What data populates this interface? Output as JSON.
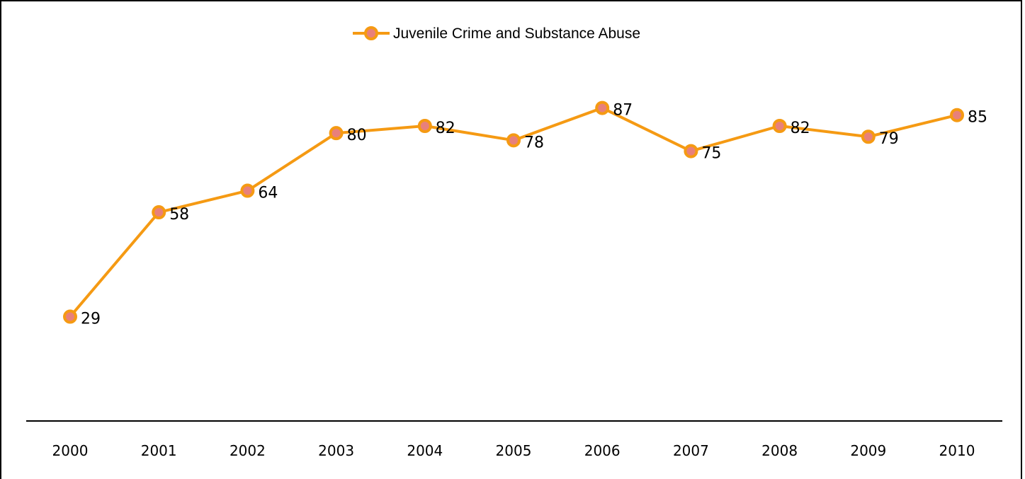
{
  "chart_data": {
    "type": "line",
    "categories": [
      "2000",
      "2001",
      "2002",
      "2003",
      "2004",
      "2005",
      "2006",
      "2007",
      "2008",
      "2009",
      "2010"
    ],
    "series": [
      {
        "name": "Juvenile Crime and Substance Abuse",
        "values": [
          29,
          58,
          64,
          80,
          82,
          78,
          87,
          75,
          82,
          79,
          85
        ]
      }
    ],
    "title": "",
    "xlabel": "",
    "ylabel": "",
    "ylim": [
      0,
      117
    ],
    "grid": false,
    "legend_position": "top-center",
    "data_labels": true,
    "colors": {
      "line": "#f59a13",
      "marker_fill": "#e8807a",
      "marker_edge": "#f59a13",
      "axis": "#000000"
    }
  }
}
